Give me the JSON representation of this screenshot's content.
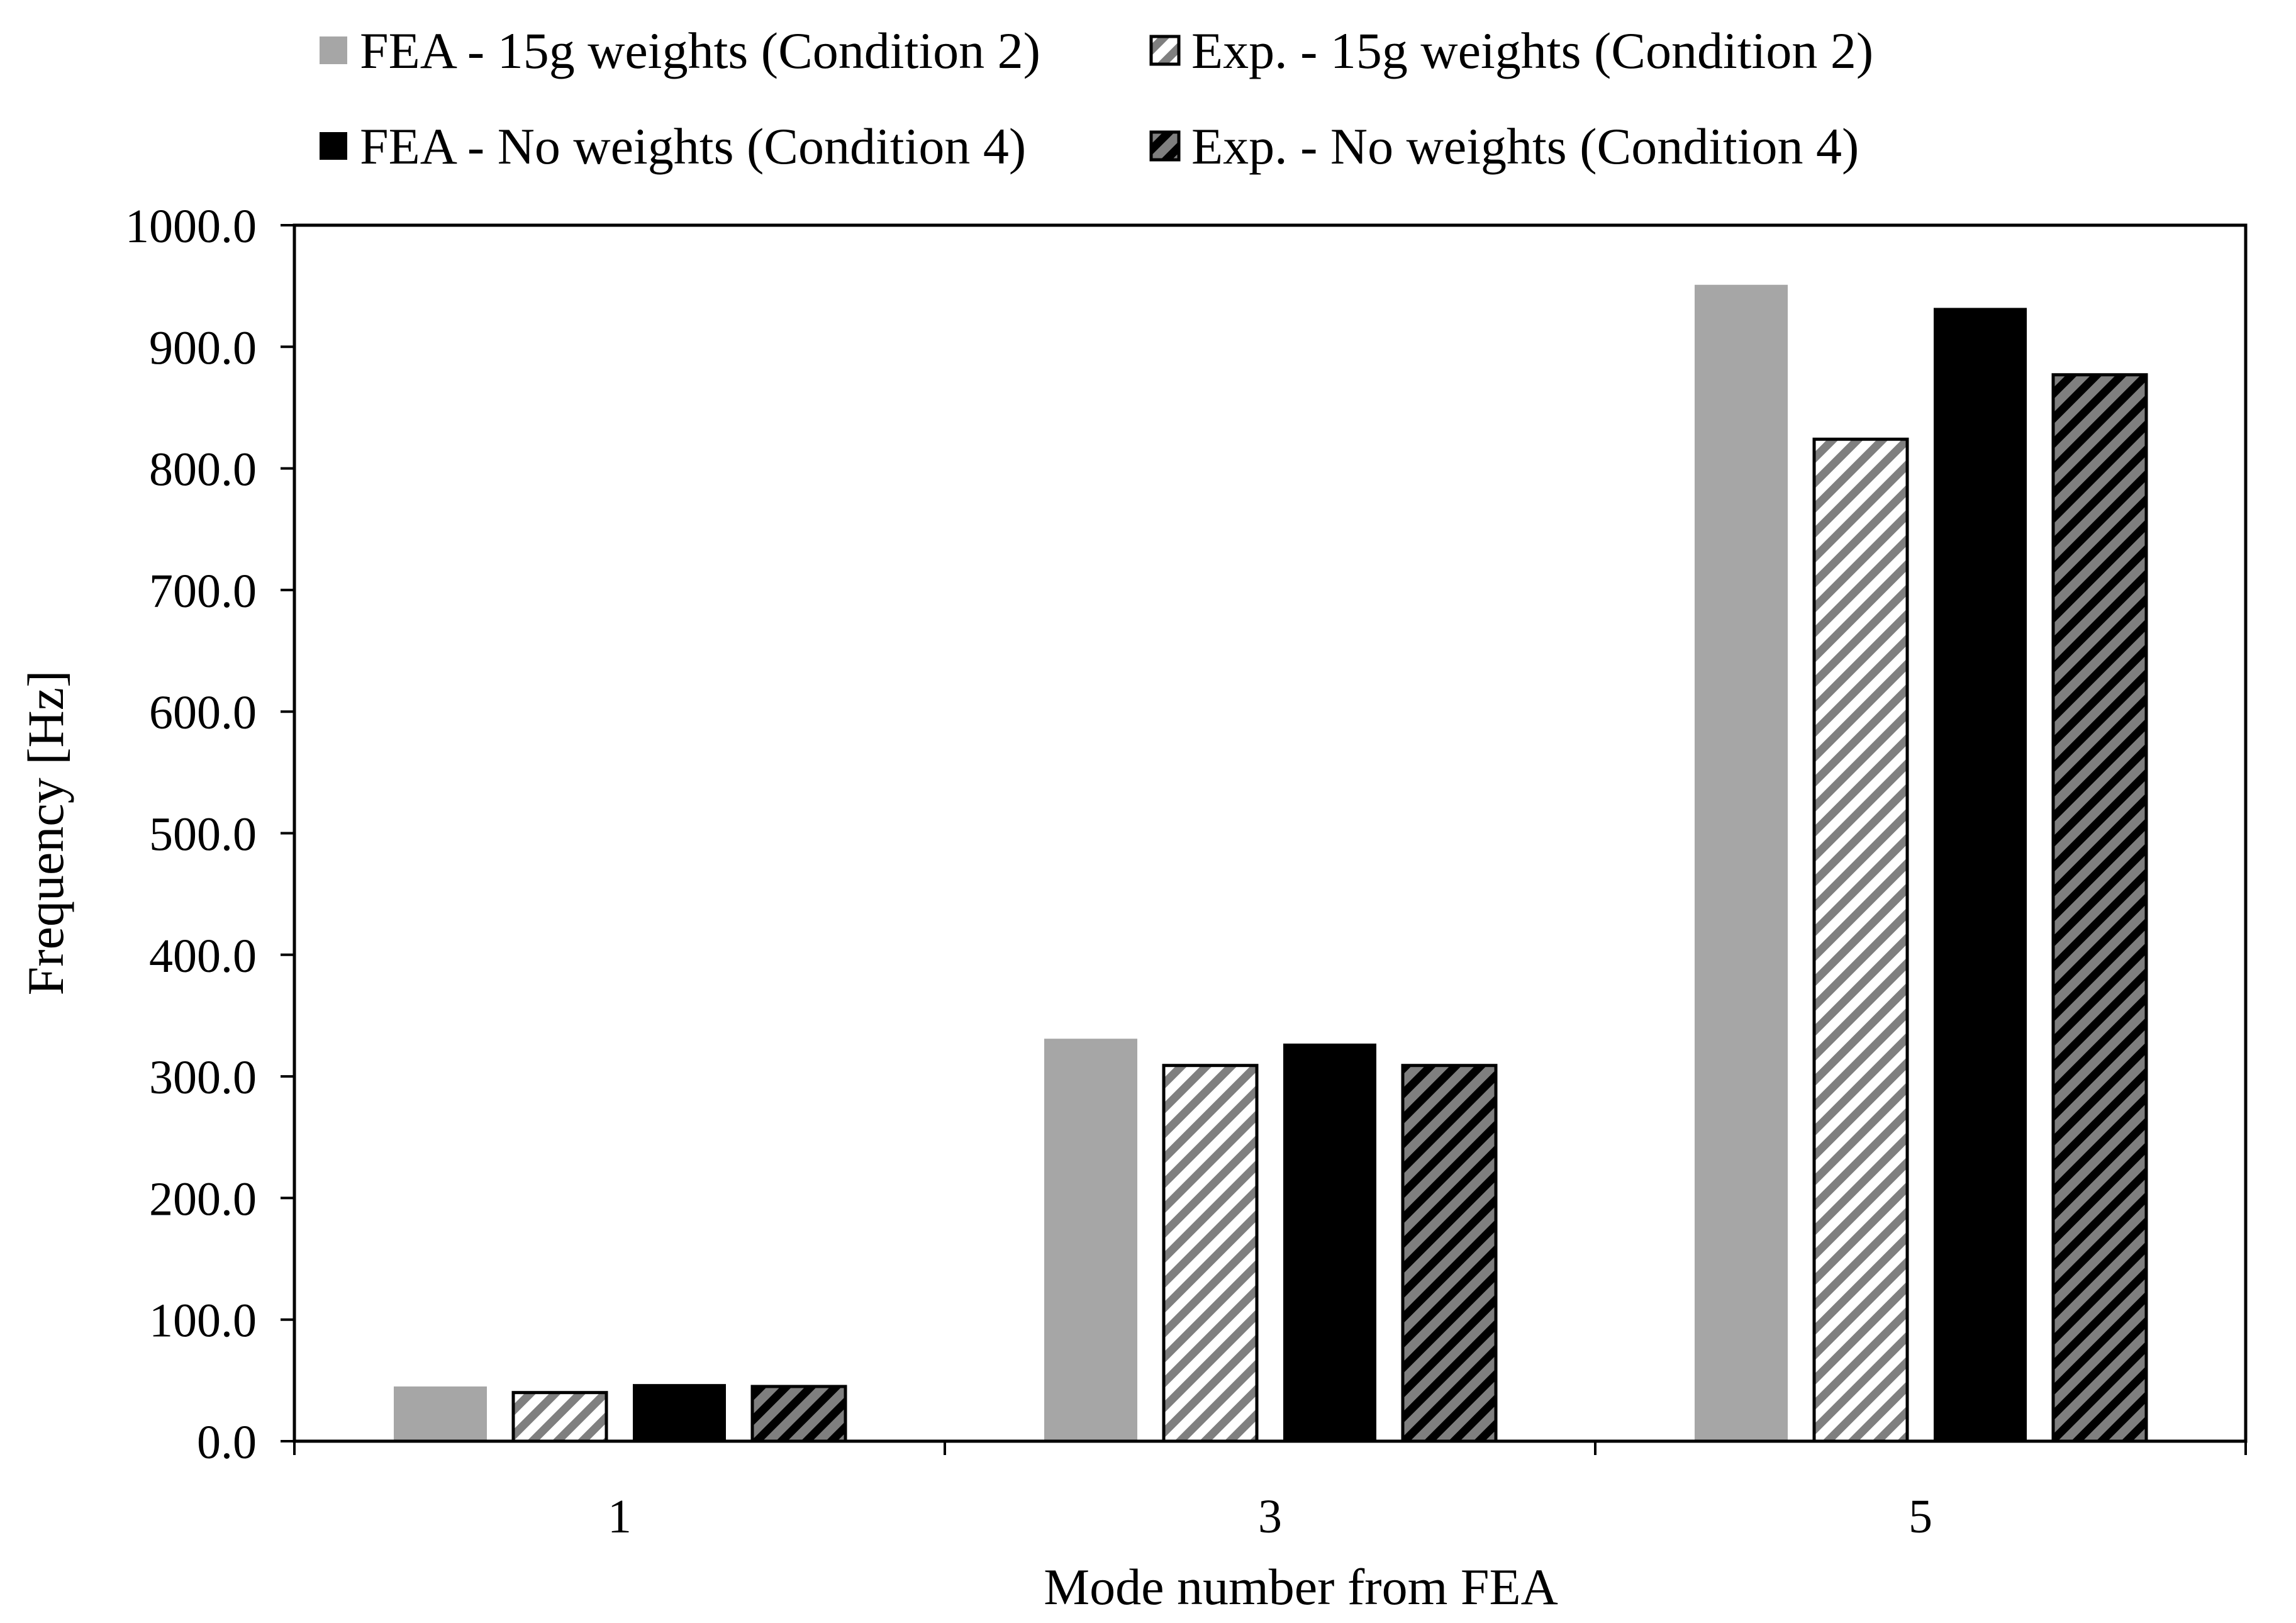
{
  "chart_data": {
    "type": "bar",
    "title": "",
    "xlabel": "Mode number from FEA",
    "ylabel": "Frequency [Hz]",
    "ylim": [
      0,
      1000
    ],
    "y_tick_step": 100,
    "y_tick_labels": [
      "0.0",
      "100.0",
      "200.0",
      "300.0",
      "400.0",
      "500.0",
      "600.0",
      "700.0",
      "800.0",
      "900.0",
      "1000.0"
    ],
    "categories": [
      "1",
      "3",
      "5"
    ],
    "grid": false,
    "legend_position": "top",
    "series": [
      {
        "name": "FEA - 15g weights (Condition 2)",
        "style": "solid",
        "color": "#a6a6a6",
        "values": [
          45,
          331,
          951
        ]
      },
      {
        "name": "Exp. - 15g weights (Condition 2)",
        "style": "hatch",
        "color": "#7f7f7f",
        "background": "#ffffff",
        "values": [
          40,
          309,
          824
        ]
      },
      {
        "name": "FEA - No weights (Condition 4)",
        "style": "solid",
        "color": "#000000",
        "values": [
          47,
          327,
          932
        ]
      },
      {
        "name": "Exp. - No weights (Condition 4)",
        "style": "hatch",
        "color": "#000000",
        "background": "#7f7f7f",
        "values": [
          45,
          309,
          877
        ]
      }
    ]
  }
}
